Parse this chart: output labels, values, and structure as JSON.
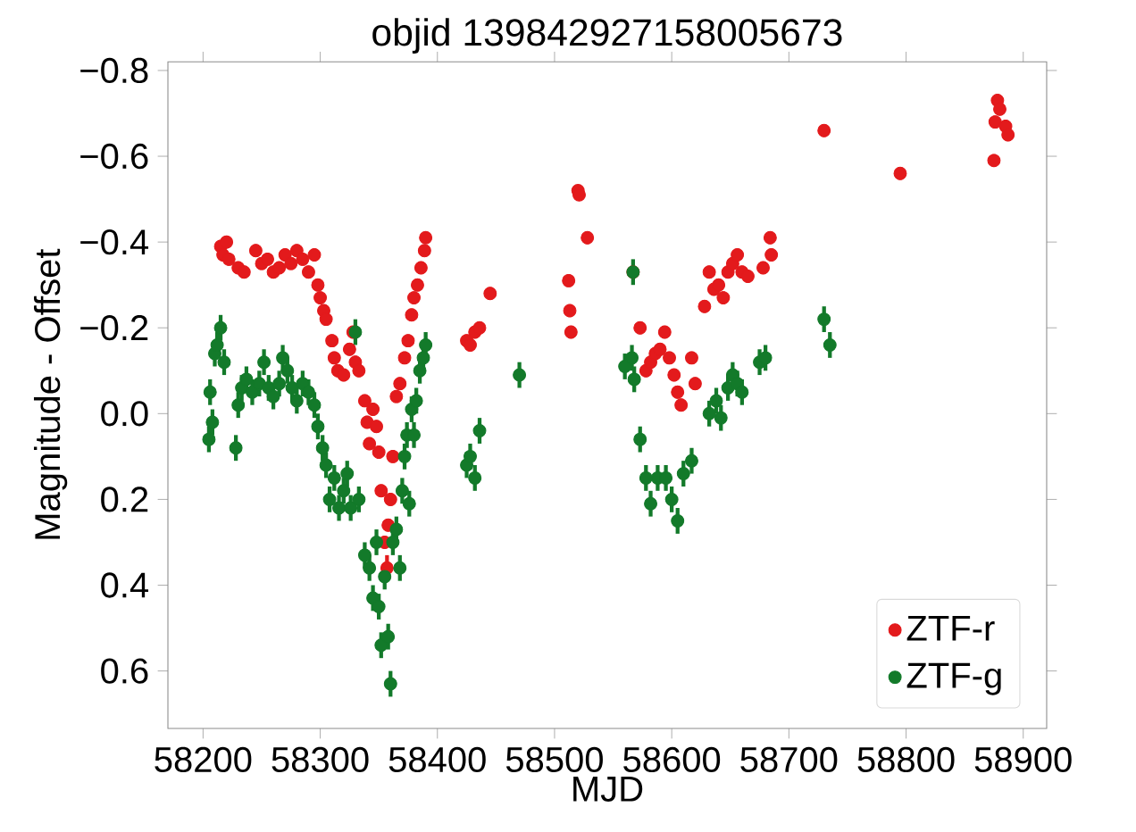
{
  "chart_data": {
    "type": "scatter",
    "title": "objid 139842927158005673",
    "xlabel": "MJD",
    "ylabel": "Magnitude - Offset",
    "xlim": [
      58170,
      58920
    ],
    "ylim": [
      0.734,
      -0.82
    ],
    "xticks": [
      58200,
      58300,
      58400,
      58500,
      58600,
      58700,
      58800,
      58900
    ],
    "yticks": [
      {
        "value": -0.8,
        "label": "−0.8"
      },
      {
        "value": -0.6,
        "label": "−0.6"
      },
      {
        "value": -0.4,
        "label": "−0.4"
      },
      {
        "value": -0.2,
        "label": "−0.2"
      },
      {
        "value": 0.0,
        "label": "0.0"
      },
      {
        "value": 0.2,
        "label": "0.2"
      },
      {
        "value": 0.4,
        "label": "0.4"
      },
      {
        "value": 0.6,
        "label": "0.6"
      }
    ],
    "marker": "circle",
    "legend": "bottom right",
    "series": [
      {
        "name": "ZTF-r",
        "color": "#e31a1c",
        "x": [
          58215,
          58217,
          58220,
          58222,
          58230,
          58235,
          58245,
          58250,
          58255,
          58260,
          58265,
          58270,
          58275,
          58280,
          58285,
          58290,
          58295,
          58298,
          58300,
          58303,
          58305,
          58310,
          58312,
          58315,
          58320,
          58325,
          58328,
          58330,
          58333,
          58338,
          58340,
          58342,
          58345,
          58348,
          58350,
          58352,
          58355,
          58357,
          58358,
          58360,
          58362,
          58365,
          58368,
          58372,
          58375,
          58378,
          58380,
          58383,
          58386,
          58389,
          58390,
          58425,
          58428,
          58432,
          58436,
          58445,
          58512,
          58513,
          58514,
          58520,
          58521,
          58528,
          58567,
          58573,
          58578,
          58582,
          58586,
          58590,
          58594,
          58598,
          58602,
          58605,
          58608,
          58617,
          58620,
          58628,
          58632,
          58636,
          58640,
          58644,
          58648,
          58652,
          58656,
          58660,
          58665,
          58678,
          58684,
          58685,
          58730,
          58795,
          58875,
          58876,
          58878,
          58880,
          58885,
          58887
        ],
        "values": [
          -0.39,
          -0.37,
          -0.4,
          -0.36,
          -0.34,
          -0.33,
          -0.38,
          -0.35,
          -0.36,
          -0.33,
          -0.34,
          -0.37,
          -0.35,
          -0.38,
          -0.36,
          -0.33,
          -0.37,
          -0.3,
          -0.27,
          -0.24,
          -0.22,
          -0.17,
          -0.13,
          -0.1,
          -0.09,
          -0.15,
          -0.19,
          -0.12,
          -0.1,
          -0.03,
          0.02,
          0.07,
          -0.01,
          0.03,
          0.09,
          0.18,
          0.3,
          0.36,
          0.26,
          0.2,
          0.1,
          -0.04,
          -0.07,
          -0.13,
          -0.17,
          -0.23,
          -0.27,
          -0.3,
          -0.34,
          -0.38,
          -0.41,
          -0.17,
          -0.16,
          -0.19,
          -0.2,
          -0.28,
          -0.31,
          -0.24,
          -0.19,
          -0.52,
          -0.51,
          -0.41,
          -0.33,
          -0.2,
          -0.1,
          -0.12,
          -0.14,
          -0.15,
          -0.19,
          -0.13,
          -0.09,
          -0.05,
          -0.02,
          -0.13,
          -0.07,
          -0.25,
          -0.33,
          -0.29,
          -0.3,
          -0.27,
          -0.33,
          -0.35,
          -0.37,
          -0.33,
          -0.32,
          -0.34,
          -0.41,
          -0.37,
          -0.66,
          -0.56,
          -0.59,
          -0.68,
          -0.73,
          -0.71,
          -0.67,
          -0.65
        ],
        "errors": [
          0.015,
          0.015,
          0.015,
          0.015,
          0.015,
          0.015,
          0.015,
          0.015,
          0.015,
          0.015,
          0.015,
          0.015,
          0.015,
          0.015,
          0.015,
          0.015,
          0.015,
          0.015,
          0.015,
          0.015,
          0.015,
          0.015,
          0.015,
          0.015,
          0.015,
          0.015,
          0.015,
          0.015,
          0.015,
          0.015,
          0.015,
          0.015,
          0.015,
          0.015,
          0.015,
          0.015,
          0.015,
          0.03,
          0.015,
          0.015,
          0.015,
          0.015,
          0.015,
          0.015,
          0.015,
          0.015,
          0.015,
          0.015,
          0.015,
          null,
          null,
          0.015,
          0.015,
          0.015,
          0.015,
          0.015,
          0.015,
          0.015,
          0.015,
          null,
          null,
          0.015,
          null,
          0.015,
          0.015,
          0.015,
          0.015,
          0.015,
          0.015,
          0.015,
          0.015,
          0.015,
          0.015,
          0.015,
          0.015,
          0.015,
          0.015,
          0.015,
          0.015,
          0.015,
          0.015,
          0.015,
          0.015,
          0.015,
          0.015,
          0.015,
          0.015,
          0.015,
          0.015,
          0.015,
          0.015,
          0.015,
          0.015,
          0.015,
          0.015,
          0.015
        ]
      },
      {
        "name": "ZTF-g",
        "color": "#137a2a",
        "x": [
          58205,
          58206,
          58208,
          58210,
          58212,
          58215,
          58218,
          58228,
          58230,
          58233,
          58237,
          58242,
          58248,
          58252,
          58256,
          58260,
          58265,
          58268,
          58272,
          58276,
          58280,
          58285,
          58290,
          58295,
          58298,
          58302,
          58305,
          58308,
          58312,
          58316,
          58320,
          58323,
          58326,
          58330,
          58333,
          58338,
          58342,
          58345,
          58348,
          58350,
          58352,
          58355,
          58358,
          58360,
          58362,
          58365,
          58368,
          58370,
          58372,
          58374,
          58376,
          58378,
          58380,
          58382,
          58385,
          58388,
          58390,
          58425,
          58428,
          58432,
          58436,
          58470,
          58560,
          58566,
          58567,
          58568,
          58573,
          58578,
          58582,
          58588,
          58595,
          58600,
          58605,
          58610,
          58617,
          58632,
          58638,
          58642,
          58648,
          58652,
          58656,
          58660,
          58675,
          58680,
          58730,
          58735
        ],
        "values": [
          0.06,
          -0.05,
          0.02,
          -0.14,
          -0.16,
          -0.2,
          -0.12,
          0.08,
          -0.02,
          -0.06,
          -0.08,
          -0.05,
          -0.07,
          -0.12,
          -0.06,
          -0.04,
          -0.07,
          -0.13,
          -0.1,
          -0.06,
          -0.03,
          -0.07,
          -0.05,
          -0.02,
          0.03,
          0.08,
          0.12,
          0.2,
          0.15,
          0.22,
          0.18,
          0.14,
          0.22,
          -0.19,
          0.2,
          0.33,
          0.36,
          0.43,
          0.3,
          0.45,
          0.54,
          0.38,
          0.52,
          0.63,
          0.3,
          0.27,
          0.36,
          0.18,
          0.1,
          0.05,
          0.21,
          -0.01,
          0.05,
          -0.03,
          -0.1,
          -0.13,
          -0.16,
          0.12,
          0.1,
          0.15,
          0.04,
          -0.09,
          -0.11,
          -0.13,
          -0.33,
          -0.08,
          0.06,
          0.15,
          0.21,
          0.15,
          0.15,
          0.2,
          0.25,
          0.14,
          0.11,
          0.0,
          -0.03,
          0.01,
          -0.06,
          -0.09,
          -0.07,
          -0.05,
          -0.12,
          -0.13,
          -0.22,
          -0.16
        ],
        "errors": [
          0.03,
          0.03,
          0.03,
          0.03,
          0.03,
          0.03,
          0.03,
          0.03,
          0.03,
          0.03,
          0.03,
          0.03,
          0.03,
          0.03,
          0.03,
          0.03,
          0.03,
          0.03,
          0.03,
          0.03,
          0.03,
          0.03,
          0.03,
          0.03,
          0.03,
          0.03,
          0.03,
          0.03,
          0.03,
          0.03,
          0.03,
          0.03,
          0.03,
          0.03,
          0.03,
          0.03,
          0.03,
          0.03,
          0.03,
          0.03,
          0.03,
          0.03,
          0.03,
          0.03,
          0.03,
          0.03,
          0.03,
          0.03,
          0.03,
          0.03,
          0.03,
          0.03,
          0.03,
          0.03,
          0.03,
          0.03,
          0.03,
          0.03,
          0.03,
          0.03,
          0.03,
          0.03,
          0.03,
          0.03,
          0.03,
          0.03,
          0.03,
          0.03,
          0.03,
          0.03,
          0.03,
          0.03,
          0.03,
          0.03,
          0.03,
          0.03,
          0.03,
          0.03,
          0.03,
          0.03,
          0.03,
          0.03,
          0.03,
          0.03,
          0.03,
          0.03
        ]
      }
    ]
  }
}
